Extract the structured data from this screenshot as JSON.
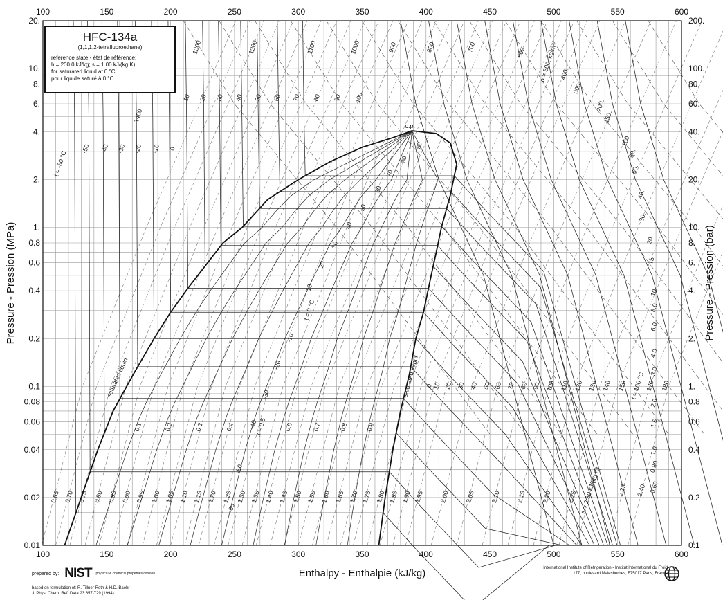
{
  "chart_data": {
    "type": "line",
    "title": "HFC-134a",
    "subtitle": "(1,1,1,2-tetrafluoroethane)",
    "reference_lines": [
      "reference state - état de référence:",
      "h = 200.0 kJ/kg;  s = 1.00 kJ/(kg K)",
      "for saturated liquid at 0 °C",
      "pour liquide saturé à 0 °C"
    ],
    "xlabel": "Enthalpy - Enthalpie  (kJ/kg)",
    "ylabel_left": "Pressure - Pression  (MPa)",
    "ylabel_right": "Pressure - Pression  (bar)",
    "xlim": [
      100,
      600
    ],
    "ylim": [
      0.01,
      20
    ],
    "y_scale": "log",
    "grid": true,
    "x_ticks": [
      "100",
      "150",
      "200",
      "250",
      "300",
      "350",
      "400",
      "450",
      "500",
      "550",
      "600"
    ],
    "y_ticks_left": [
      {
        "v": 20,
        "label": "20."
      },
      {
        "v": 10,
        "label": "10."
      },
      {
        "v": 8,
        "label": "8."
      },
      {
        "v": 6,
        "label": "6."
      },
      {
        "v": 4,
        "label": "4."
      },
      {
        "v": 2,
        "label": "2."
      },
      {
        "v": 1,
        "label": "1."
      },
      {
        "v": 0.8,
        "label": "0.8"
      },
      {
        "v": 0.6,
        "label": "0.6"
      },
      {
        "v": 0.4,
        "label": "0.4"
      },
      {
        "v": 0.2,
        "label": "0.2"
      },
      {
        "v": 0.1,
        "label": "0.1"
      },
      {
        "v": 0.08,
        "label": "0.08"
      },
      {
        "v": 0.06,
        "label": "0.06"
      },
      {
        "v": 0.04,
        "label": "0.04"
      },
      {
        "v": 0.02,
        "label": "0.02"
      },
      {
        "v": 0.01,
        "label": "0.01"
      }
    ],
    "y_ticks_right": [
      {
        "v": 20,
        "label": "200."
      },
      {
        "v": 10,
        "label": "100."
      },
      {
        "v": 8,
        "label": "80."
      },
      {
        "v": 6,
        "label": "60."
      },
      {
        "v": 4,
        "label": "40."
      },
      {
        "v": 2,
        "label": "20."
      },
      {
        "v": 1,
        "label": "10."
      },
      {
        "v": 0.8,
        "label": "8."
      },
      {
        "v": 0.6,
        "label": "6."
      },
      {
        "v": 0.4,
        "label": "4."
      },
      {
        "v": 0.2,
        "label": "2."
      },
      {
        "v": 0.1,
        "label": "1."
      },
      {
        "v": 0.08,
        "label": "0.8"
      },
      {
        "v": 0.06,
        "label": "0.6"
      },
      {
        "v": 0.04,
        "label": "0.4"
      },
      {
        "v": 0.02,
        "label": "0.2"
      },
      {
        "v": 0.01,
        "label": "0.1"
      }
    ],
    "saturated_liquid": [
      [
        117,
        0.01
      ],
      [
        130,
        0.02
      ],
      [
        143,
        0.04
      ],
      [
        155,
        0.07
      ],
      [
        171,
        0.12
      ],
      [
        187,
        0.2
      ],
      [
        200,
        0.293
      ],
      [
        214,
        0.42
      ],
      [
        229,
        0.6
      ],
      [
        241,
        0.8
      ],
      [
        256,
        1.0
      ],
      [
        276,
        1.5
      ],
      [
        300,
        2.0
      ],
      [
        325,
        2.6
      ],
      [
        350,
        3.2
      ],
      [
        375,
        3.7
      ],
      [
        389,
        4.06
      ]
    ],
    "saturated_vapor": [
      [
        363,
        0.01
      ],
      [
        368,
        0.02
      ],
      [
        374,
        0.04
      ],
      [
        380,
        0.07
      ],
      [
        387,
        0.12
      ],
      [
        392,
        0.2
      ],
      [
        398,
        0.293
      ],
      [
        404,
        0.5
      ],
      [
        408,
        0.7
      ],
      [
        412,
        1.0
      ],
      [
        419,
        1.6
      ],
      [
        424,
        2.5
      ],
      [
        419,
        3.4
      ],
      [
        408,
        3.9
      ],
      [
        389,
        4.06
      ]
    ],
    "critical_point": {
      "h": 389,
      "p": 4.06,
      "label": "c.p."
    },
    "sat_liquid_label": "saturated liquid",
    "sat_vapor_label": "saturated vapor",
    "isotherm_labels": [
      {
        "text": "t = -60 °C",
        "h": 115,
        "p": 2.5
      },
      {
        "text": "-50",
        "h": 135,
        "p": 3.1
      },
      {
        "text": "-40",
        "h": 150,
        "p": 3.1
      },
      {
        "text": "-30",
        "h": 163,
        "p": 3.1
      },
      {
        "text": "-20",
        "h": 176,
        "p": 3.1
      },
      {
        "text": "-10",
        "h": 190,
        "p": 3.1
      },
      {
        "text": "0",
        "h": 203,
        "p": 3.1
      },
      {
        "text": "10",
        "h": 214,
        "p": 6.5
      },
      {
        "text": "20",
        "h": 227,
        "p": 6.5
      },
      {
        "text": "30",
        "h": 240,
        "p": 6.5
      },
      {
        "text": "40",
        "h": 255,
        "p": 6.5
      },
      {
        "text": "50",
        "h": 270,
        "p": 6.5
      },
      {
        "text": "60",
        "h": 285,
        "p": 6.5
      },
      {
        "text": "70",
        "h": 300,
        "p": 6.5
      },
      {
        "text": "80",
        "h": 316,
        "p": 6.5
      },
      {
        "text": "90",
        "h": 332,
        "p": 6.5
      },
      {
        "text": "100",
        "h": 349,
        "p": 6.5
      },
      {
        "text": "1400",
        "h": 176,
        "p": 5.0
      },
      {
        "text": "1300",
        "h": 222,
        "p": 13.5
      },
      {
        "text": "1200",
        "h": 266,
        "p": 13.5
      },
      {
        "text": "1100",
        "h": 312,
        "p": 13.5
      },
      {
        "text": "1000",
        "h": 346,
        "p": 13.5
      },
      {
        "text": "900",
        "h": 375,
        "p": 13.5
      },
      {
        "text": "800",
        "h": 405,
        "p": 13.5
      },
      {
        "text": "700",
        "h": 437,
        "p": 13.5
      },
      {
        "text": "600",
        "h": 476,
        "p": 12.5
      },
      {
        "text": "ρ = 500. kg/m³",
        "h": 497,
        "p": 10.8
      },
      {
        "text": "400.",
        "h": 510,
        "p": 9.2
      },
      {
        "text": "300.",
        "h": 520,
        "p": 7.5
      },
      {
        "text": "200.",
        "h": 538,
        "p": 5.8
      },
      {
        "text": "150.",
        "h": 544,
        "p": 4.9
      },
      {
        "text": "100.",
        "h": 558,
        "p": 3.5
      },
      {
        "text": "80.",
        "h": 563,
        "p": 2.9
      },
      {
        "text": "60.",
        "h": 565,
        "p": 2.3
      },
      {
        "text": "40.",
        "h": 570,
        "p": 1.6
      },
      {
        "text": "30.",
        "h": 571,
        "p": 1.15
      },
      {
        "text": "20.",
        "h": 577,
        "p": 0.83
      },
      {
        "text": "15.",
        "h": 578,
        "p": 0.62
      },
      {
        "text": "10.",
        "h": 580,
        "p": 0.39
      },
      {
        "text": "8.0",
        "h": 580,
        "p": 0.31
      },
      {
        "text": "6.0",
        "h": 580,
        "p": 0.235
      },
      {
        "text": "4.0",
        "h": 580,
        "p": 0.16
      },
      {
        "text": "3.0",
        "h": 580,
        "p": 0.123
      },
      {
        "text": "2.0",
        "h": 580,
        "p": 0.078
      },
      {
        "text": "1.5",
        "h": 580,
        "p": 0.058
      },
      {
        "text": "1.0",
        "h": 580,
        "p": 0.039
      },
      {
        "text": "0.80",
        "h": 580,
        "p": 0.031
      },
      {
        "text": "0.60",
        "h": 580,
        "p": 0.023
      },
      {
        "text": "90",
        "h": 396,
        "p": 3.25
      },
      {
        "text": "80",
        "h": 384,
        "p": 2.65
      },
      {
        "text": "70",
        "h": 373,
        "p": 2.17
      },
      {
        "text": "60",
        "h": 364,
        "p": 1.72
      },
      {
        "text": "50",
        "h": 352,
        "p": 1.32
      },
      {
        "text": "40",
        "h": 341,
        "p": 1.02
      },
      {
        "text": "30",
        "h": 330,
        "p": 0.77
      },
      {
        "text": "20",
        "h": 320,
        "p": 0.58
      },
      {
        "text": "10",
        "h": 310,
        "p": 0.415
      },
      {
        "text": "t = 0 °C",
        "h": 310,
        "p": 0.3
      },
      {
        "text": "-10",
        "h": 295,
        "p": 0.2
      },
      {
        "text": "-20",
        "h": 285,
        "p": 0.135
      },
      {
        "text": "-30",
        "h": 276,
        "p": 0.088
      },
      {
        "text": "-40",
        "h": 266,
        "p": 0.057
      },
      {
        "text": "-50",
        "h": 255,
        "p": 0.03
      },
      {
        "text": "-60",
        "h": 249,
        "p": 0.017
      },
      {
        "text": "0",
        "h": 404,
        "p": 0.1
      },
      {
        "text": "10",
        "h": 410,
        "p": 0.1
      },
      {
        "text": "20",
        "h": 419,
        "p": 0.1
      },
      {
        "text": "30",
        "h": 429,
        "p": 0.1
      },
      {
        "text": "40",
        "h": 439,
        "p": 0.1
      },
      {
        "text": "50",
        "h": 449,
        "p": 0.1
      },
      {
        "text": "60",
        "h": 458,
        "p": 0.1
      },
      {
        "text": "70",
        "h": 468,
        "p": 0.1
      },
      {
        "text": "80",
        "h": 478,
        "p": 0.1
      },
      {
        "text": "90",
        "h": 488,
        "p": 0.1
      },
      {
        "text": "100",
        "h": 499,
        "p": 0.1
      },
      {
        "text": "110",
        "h": 510,
        "p": 0.1
      },
      {
        "text": "120",
        "h": 521,
        "p": 0.1
      },
      {
        "text": "130",
        "h": 532,
        "p": 0.1
      },
      {
        "text": "140",
        "h": 543,
        "p": 0.1
      },
      {
        "text": "150",
        "h": 555,
        "p": 0.1
      },
      {
        "text": "t = 160 °C",
        "h": 567,
        "p": 0.1
      },
      {
        "text": "170",
        "h": 577,
        "p": 0.1
      },
      {
        "text": "180",
        "h": 589,
        "p": 0.1
      }
    ],
    "quality_labels": [
      {
        "text": "0.1",
        "h": 176,
        "p": 0.055
      },
      {
        "text": "0.2",
        "h": 200,
        "p": 0.055
      },
      {
        "text": "0.3",
        "h": 224,
        "p": 0.055
      },
      {
        "text": "0.4",
        "h": 248,
        "p": 0.055
      },
      {
        "text": "x = 0.5",
        "h": 272,
        "p": 0.055
      },
      {
        "text": "0.6",
        "h": 294,
        "p": 0.055
      },
      {
        "text": "0.7",
        "h": 316,
        "p": 0.055
      },
      {
        "text": "0.8",
        "h": 337,
        "p": 0.055
      },
      {
        "text": "0.9",
        "h": 358,
        "p": 0.055
      }
    ],
    "entropy_labels": [
      {
        "text": "0.65",
        "h": 111,
        "p": 0.02
      },
      {
        "text": "0.70",
        "h": 122,
        "p": 0.02
      },
      {
        "text": "0.75",
        "h": 133,
        "p": 0.02
      },
      {
        "text": "0.80",
        "h": 145,
        "p": 0.02
      },
      {
        "text": "0.85",
        "h": 156,
        "p": 0.02
      },
      {
        "text": "0.90",
        "h": 167,
        "p": 0.02
      },
      {
        "text": "0.95",
        "h": 178,
        "p": 0.02
      },
      {
        "text": "1.00",
        "h": 190,
        "p": 0.02
      },
      {
        "text": "1.05",
        "h": 201,
        "p": 0.02
      },
      {
        "text": "1.10",
        "h": 212,
        "p": 0.02
      },
      {
        "text": "1.15",
        "h": 223,
        "p": 0.02
      },
      {
        "text": "1.20",
        "h": 234,
        "p": 0.02
      },
      {
        "text": "1.25",
        "h": 246,
        "p": 0.02
      },
      {
        "text": "1.30",
        "h": 257,
        "p": 0.02
      },
      {
        "text": "1.35",
        "h": 268,
        "p": 0.02
      },
      {
        "text": "1.40",
        "h": 279,
        "p": 0.02
      },
      {
        "text": "1.45",
        "h": 290,
        "p": 0.02
      },
      {
        "text": "1.50",
        "h": 301,
        "p": 0.02
      },
      {
        "text": "1.55",
        "h": 312,
        "p": 0.02
      },
      {
        "text": "1.60",
        "h": 323,
        "p": 0.02
      },
      {
        "text": "1.65",
        "h": 334,
        "p": 0.02
      },
      {
        "text": "1.70",
        "h": 345,
        "p": 0.02
      },
      {
        "text": "1.75",
        "h": 355,
        "p": 0.02
      },
      {
        "text": "1.80",
        "h": 366,
        "p": 0.02
      },
      {
        "text": "1.85",
        "h": 376,
        "p": 0.02
      },
      {
        "text": "1.90",
        "h": 386,
        "p": 0.02
      },
      {
        "text": "1.95",
        "h": 396,
        "p": 0.02
      },
      {
        "text": "2.00",
        "h": 416,
        "p": 0.02
      },
      {
        "text": "2.05",
        "h": 436,
        "p": 0.02
      },
      {
        "text": "2.10",
        "h": 456,
        "p": 0.02
      },
      {
        "text": "2.15",
        "h": 476,
        "p": 0.02
      },
      {
        "text": "2.20",
        "h": 496,
        "p": 0.02
      },
      {
        "text": "2.25",
        "h": 516,
        "p": 0.02
      },
      {
        "text": "s = 2.30 kJ/(kg K)",
        "h": 530,
        "p": 0.022
      },
      {
        "text": "2.35",
        "h": 555,
        "p": 0.022
      },
      {
        "text": "2.40",
        "h": 570,
        "p": 0.022
      }
    ]
  },
  "footer": {
    "prepared_by": "prepared by:",
    "nist_logo": "NIST",
    "nist_division": "physical & chemical properties division",
    "citation_line1": "based on formulation of:  R. Tillner-Roth & H.D. Baehr",
    "citation_line2": "J. Phys. Chem. Ref. Data  23:657-729 (1994)",
    "iifr_line1": "International Institute of Refrigeration - Institut International du Froid",
    "iifr_line2": "177, boulevard Malesherbes, F75017 Paris, France",
    "iifr_logo": "globe-logo"
  }
}
